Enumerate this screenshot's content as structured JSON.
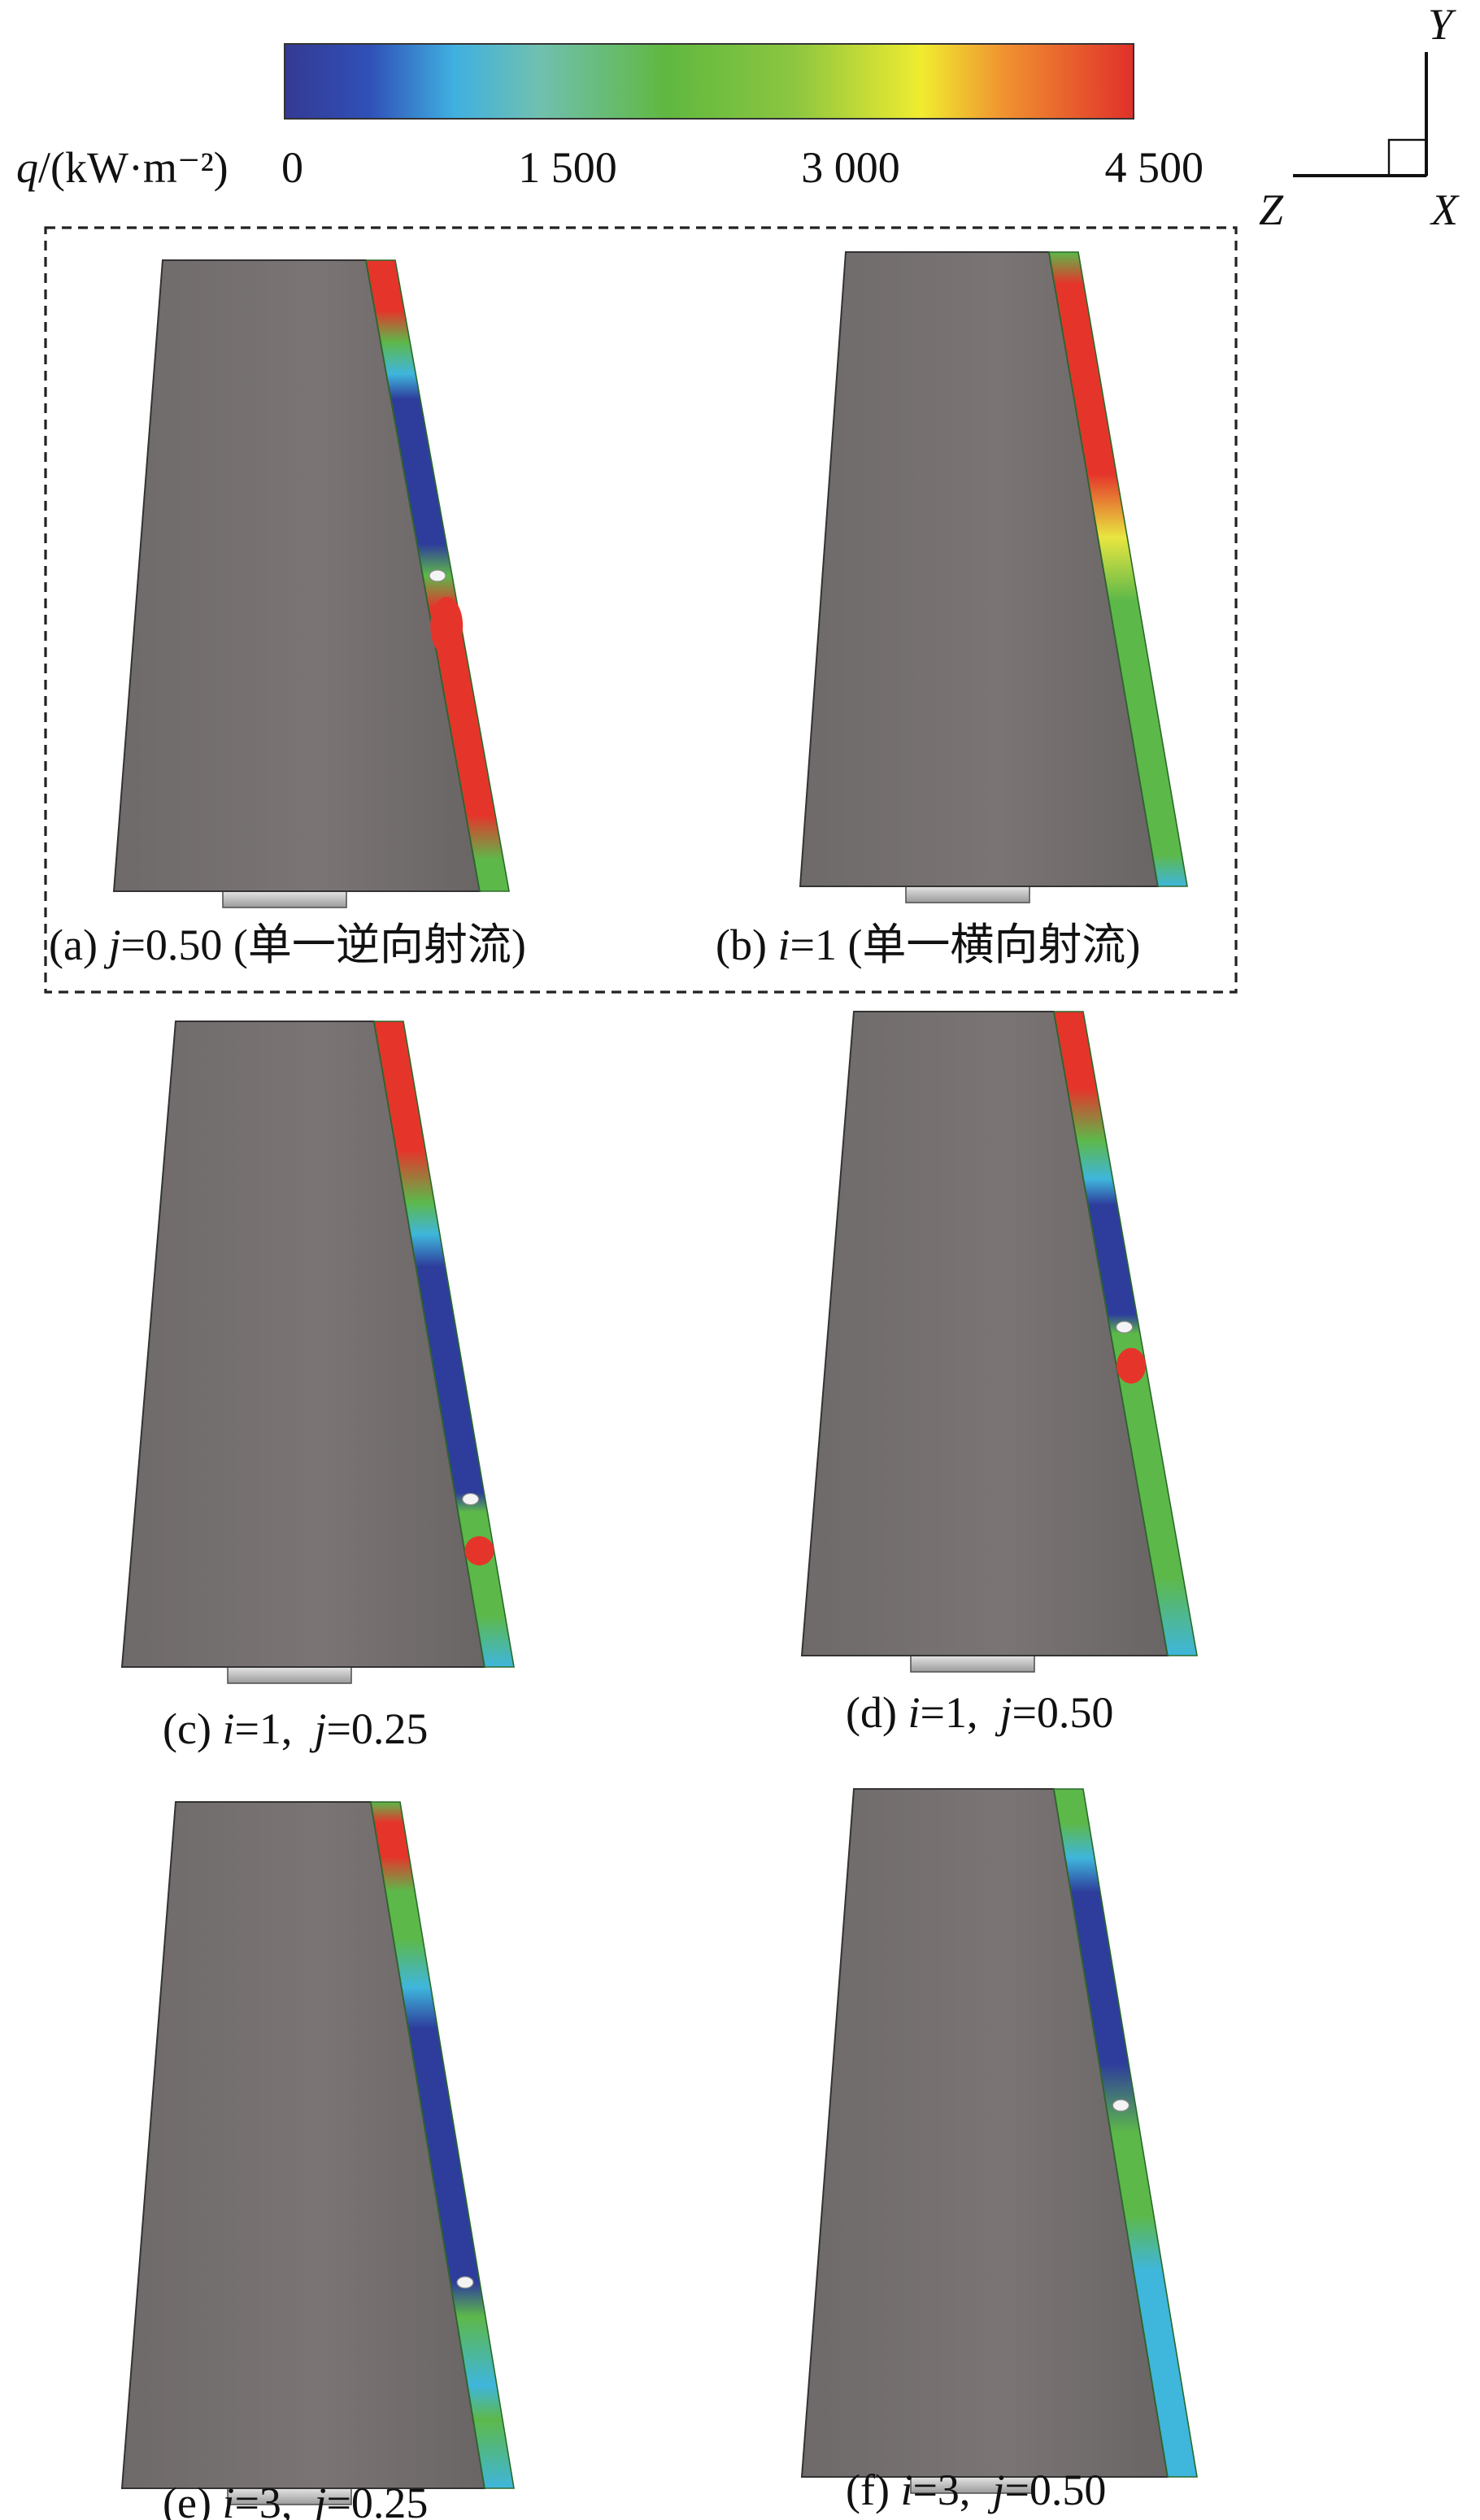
{
  "colorbar": {
    "label": [
      {
        "text": "q",
        "italic": true
      },
      {
        "text": "/(kW·m⁻²)"
      }
    ],
    "range": [
      0,
      4500
    ],
    "ticks": [
      0,
      {
        "value": 1500,
        "label": "1 500"
      },
      {
        "value": 3000,
        "label": "3 000"
      },
      {
        "value": 4500,
        "label": "4 500"
      }
    ]
  },
  "axes": {
    "y": "Y",
    "z": "Z",
    "x": "X"
  },
  "panels": [
    {
      "caption": [
        {
          "text": "(a) "
        },
        {
          "text": "j",
          "italic": true
        },
        {
          "text": "=0.50 (单一逆向射流)"
        }
      ]
    },
    {
      "caption": [
        {
          "text": "(b) "
        },
        {
          "text": "i",
          "italic": true
        },
        {
          "text": "=1 (单一横向射流)"
        }
      ]
    },
    {
      "caption": [
        {
          "text": "(c) "
        },
        {
          "text": "i",
          "italic": true
        },
        {
          "text": "=1,  "
        },
        {
          "text": "j",
          "italic": true
        },
        {
          "text": "=0.25"
        }
      ]
    },
    {
      "caption": [
        {
          "text": "(d) "
        },
        {
          "text": "i",
          "italic": true
        },
        {
          "text": "=1,  "
        },
        {
          "text": "j",
          "italic": true
        },
        {
          "text": "=0.50"
        }
      ]
    },
    {
      "caption": [
        {
          "text": "(e) "
        },
        {
          "text": "i",
          "italic": true
        },
        {
          "text": "=3,  "
        },
        {
          "text": "j",
          "italic": true
        },
        {
          "text": "=0.25"
        }
      ]
    },
    {
      "caption": [
        {
          "text": "(f) "
        },
        {
          "text": "i",
          "italic": true
        },
        {
          "text": "=3,  "
        },
        {
          "text": "j",
          "italic": true
        },
        {
          "text": "=0.50"
        }
      ]
    }
  ]
}
